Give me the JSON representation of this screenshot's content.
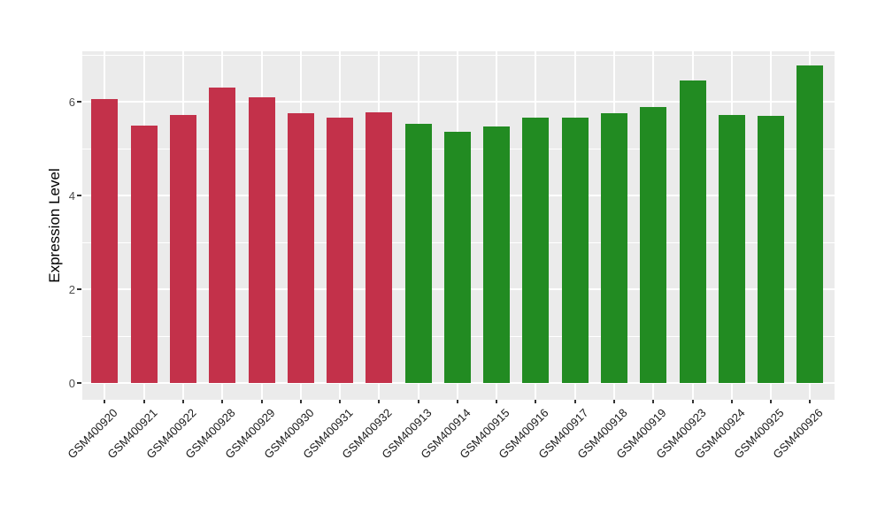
{
  "chart_data": {
    "type": "bar",
    "title": "",
    "xlabel": "",
    "ylabel": "Expression Level",
    "yticks": [
      0,
      2,
      4,
      6
    ],
    "minor_gridlines": [
      1,
      3,
      5,
      7
    ],
    "ylim": [
      -0.36,
      7.08
    ],
    "grid": "on",
    "legend": "none",
    "panel_bg": "#EBEBEB",
    "grid_color": "#FFFFFF",
    "group_colors": {
      "group_a": "#C3314A",
      "group_b": "#228B22"
    },
    "bars": [
      {
        "label": "GSM400920",
        "value": 6.05,
        "group": "group_a"
      },
      {
        "label": "GSM400921",
        "value": 5.5,
        "group": "group_a"
      },
      {
        "label": "GSM400922",
        "value": 5.72,
        "group": "group_a"
      },
      {
        "label": "GSM400928",
        "value": 6.31,
        "group": "group_a"
      },
      {
        "label": "GSM400929",
        "value": 6.09,
        "group": "group_a"
      },
      {
        "label": "GSM400930",
        "value": 5.76,
        "group": "group_a"
      },
      {
        "label": "GSM400931",
        "value": 5.66,
        "group": "group_a"
      },
      {
        "label": "GSM400932",
        "value": 5.78,
        "group": "group_a"
      },
      {
        "label": "GSM400913",
        "value": 5.53,
        "group": "group_b"
      },
      {
        "label": "GSM400914",
        "value": 5.36,
        "group": "group_b"
      },
      {
        "label": "GSM400915",
        "value": 5.47,
        "group": "group_b"
      },
      {
        "label": "GSM400916",
        "value": 5.66,
        "group": "group_b"
      },
      {
        "label": "GSM400917",
        "value": 5.66,
        "group": "group_b"
      },
      {
        "label": "GSM400918",
        "value": 5.76,
        "group": "group_b"
      },
      {
        "label": "GSM400919",
        "value": 5.89,
        "group": "group_b"
      },
      {
        "label": "GSM400923",
        "value": 6.45,
        "group": "group_b"
      },
      {
        "label": "GSM400924",
        "value": 5.72,
        "group": "group_b"
      },
      {
        "label": "GSM400925",
        "value": 5.7,
        "group": "group_b"
      },
      {
        "label": "GSM400926",
        "value": 6.77,
        "group": "group_b"
      }
    ]
  }
}
